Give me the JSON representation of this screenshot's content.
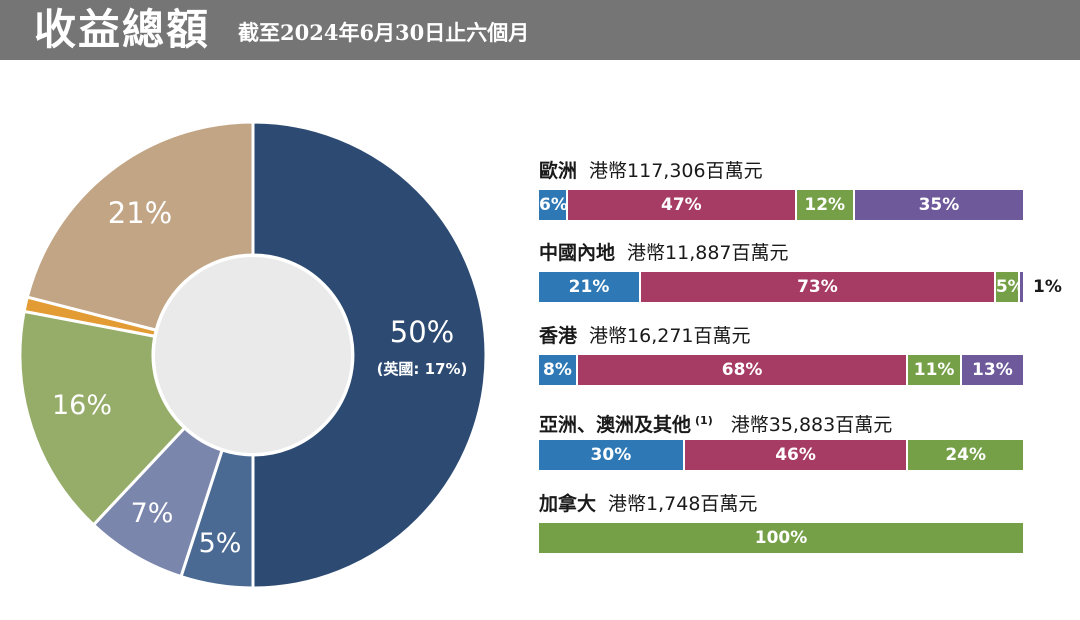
{
  "header": {
    "title": "收益總額",
    "subtitle": "截至2024年6月30日止六個月"
  },
  "chart_data": [
    {
      "type": "pie",
      "donut": true,
      "slices": [
        {
          "label": "50%",
          "sublabel": "(英國: 17%)",
          "value": 50,
          "color": "#2c4a72"
        },
        {
          "label": "5%",
          "value": 5,
          "color": "#4a6a93"
        },
        {
          "label": "7%",
          "value": 7,
          "color": "#7b86ad"
        },
        {
          "label": "16%",
          "value": 16,
          "color": "#96ad6a"
        },
        {
          "label": "1%",
          "value": 1,
          "color": "#e39b34"
        },
        {
          "label": "21%",
          "value": 21,
          "color": "#c2a585"
        }
      ]
    },
    {
      "type": "bar",
      "stacked": true,
      "orientation": "horizontal",
      "rows": [
        {
          "name": "歐洲",
          "note": "",
          "total": "港幣117,306百萬元",
          "segments": [
            {
              "label": "6%",
              "value": 6,
              "color": "#2e79b5"
            },
            {
              "label": "47%",
              "value": 47,
              "color": "#a63c63"
            },
            {
              "label": "12%",
              "value": 12,
              "color": "#75a047"
            },
            {
              "label": "35%",
              "value": 35,
              "color": "#6e5a9a"
            }
          ]
        },
        {
          "name": "中國內地",
          "note": "",
          "total": "港幣11,887百萬元",
          "segments": [
            {
              "label": "21%",
              "value": 21,
              "color": "#2e79b5"
            },
            {
              "label": "73%",
              "value": 73,
              "color": "#a63c63"
            },
            {
              "label": "5%",
              "value": 5,
              "color": "#75a047"
            },
            {
              "label": "1%",
              "value": 1,
              "color": "#6e5a9a",
              "outside": true
            }
          ]
        },
        {
          "name": "香港",
          "note": "",
          "total": "港幣16,271百萬元",
          "segments": [
            {
              "label": "8%",
              "value": 8,
              "color": "#2e79b5"
            },
            {
              "label": "68%",
              "value": 68,
              "color": "#a63c63"
            },
            {
              "label": "11%",
              "value": 11,
              "color": "#75a047"
            },
            {
              "label": "13%",
              "value": 13,
              "color": "#6e5a9a"
            }
          ]
        },
        {
          "name": "亞洲、澳洲及其他",
          "note": "(1)",
          "total": "港幣35,883百萬元",
          "segments": [
            {
              "label": "30%",
              "value": 30,
              "color": "#2e79b5"
            },
            {
              "label": "46%",
              "value": 46,
              "color": "#a63c63"
            },
            {
              "label": "24%",
              "value": 24,
              "color": "#75a047"
            }
          ]
        },
        {
          "name": "加拿大",
          "note": "",
          "total": "港幣1,748百萬元",
          "segments": [
            {
              "label": "100%",
              "value": 100,
              "color": "#75a047"
            }
          ]
        }
      ]
    }
  ]
}
